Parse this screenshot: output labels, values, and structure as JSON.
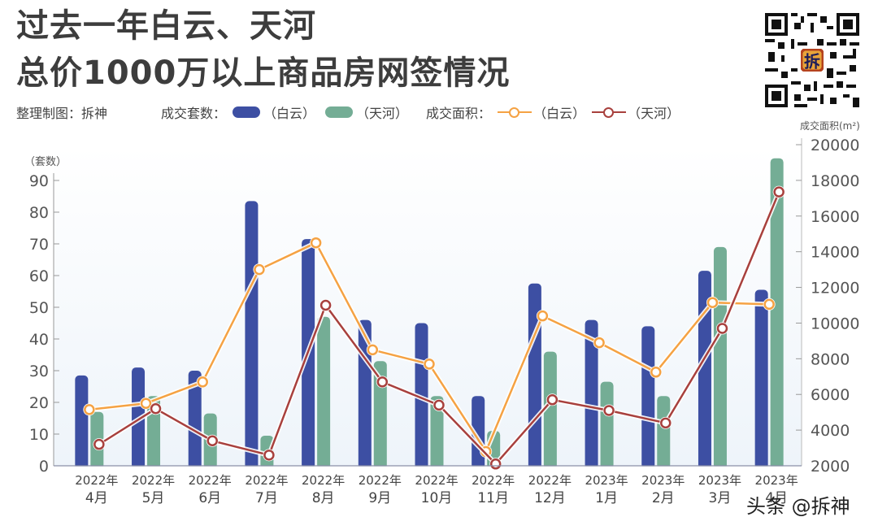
{
  "header": {
    "title_line1": "过去一年白云、天河",
    "title_line2": "总价1000万以上商品房网签情况",
    "credit": "整理制图：拆神",
    "legend_count_label": "成交套数：",
    "legend_area_label": "成交面积：",
    "legend_baiyun": "（白云）",
    "legend_tianhe": "（天河）"
  },
  "qr": {
    "center_glyph": "拆"
  },
  "watermark": "头条 @拆神",
  "colors": {
    "baiyun_bar": "#3d4fa3",
    "tianhe_bar": "#74ad95",
    "baiyun_line": "#f5a243",
    "tianhe_line": "#a8403d",
    "axis": "#888888",
    "text": "#444444"
  },
  "chart_data": {
    "type": "bar+line",
    "title": "过去一年白云、天河总价1000万以上商品房网签情况",
    "categories": [
      "2022年4月",
      "2022年5月",
      "2022年6月",
      "2022年7月",
      "2022年8月",
      "2022年9月",
      "2022年10月",
      "2022年11月",
      "2022年12月",
      "2023年1月",
      "2023年2月",
      "2023年3月",
      "2023年4月"
    ],
    "category_labels": [
      [
        "2022年",
        "4月"
      ],
      [
        "2022年",
        "5月"
      ],
      [
        "2022年",
        "6月"
      ],
      [
        "2022年",
        "7月"
      ],
      [
        "2022年",
        "8月"
      ],
      [
        "2022年",
        "9月"
      ],
      [
        "2022年",
        "10月"
      ],
      [
        "2022年",
        "11月"
      ],
      [
        "2022年",
        "12月"
      ],
      [
        "2023年",
        "1月"
      ],
      [
        "2023年",
        "2月"
      ],
      [
        "2023年",
        "3月"
      ],
      [
        "2023年",
        "4月"
      ]
    ],
    "left_axis": {
      "label": "（套数）",
      "ticks": [
        0,
        10,
        20,
        30,
        40,
        50,
        60,
        70,
        80,
        90
      ],
      "range": [
        0,
        90
      ]
    },
    "right_axis": {
      "label": "成交面积(m²)",
      "ticks": [
        2000,
        4000,
        6000,
        8000,
        10000,
        12000,
        14000,
        16000,
        18000,
        20000
      ],
      "range": [
        2000,
        20000
      ]
    },
    "series": [
      {
        "name": "成交套数（白云）",
        "type": "bar",
        "axis": "left",
        "color": "#3d4fa3",
        "values": [
          28.5,
          31,
          30,
          83.5,
          71.5,
          46,
          45,
          22,
          57.5,
          46,
          44,
          61.5,
          55.5
        ]
      },
      {
        "name": "成交套数（天河）",
        "type": "bar",
        "axis": "left",
        "color": "#74ad95",
        "values": [
          17,
          22,
          16.5,
          9.5,
          47,
          33,
          22,
          11,
          36,
          26.5,
          22,
          69,
          97
        ]
      },
      {
        "name": "成交面积（白云）",
        "type": "line",
        "axis": "right",
        "color": "#f5a243",
        "values": [
          5150,
          5500,
          6700,
          13000,
          14500,
          8500,
          7700,
          2800,
          10400,
          8900,
          7250,
          11150,
          11050
        ]
      },
      {
        "name": "成交面积（天河）",
        "type": "line",
        "axis": "right",
        "color": "#a8403d",
        "values": [
          3200,
          5200,
          3400,
          2600,
          11000,
          6700,
          5400,
          2100,
          5700,
          5100,
          4400,
          9700,
          17350
        ]
      }
    ],
    "legend_position": "top",
    "grid": false
  }
}
